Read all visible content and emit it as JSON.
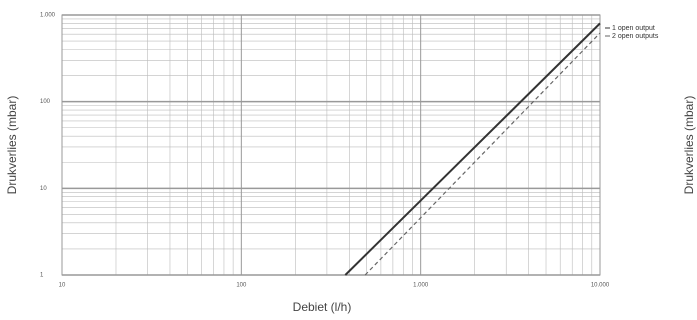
{
  "chart_data": {
    "type": "line",
    "x_label": "Debiet (l/h)",
    "y_label": "Drukverlies (mbar)",
    "log_x": true,
    "log_y": true,
    "grid": true,
    "xlim": [
      10,
      10000
    ],
    "ylim": [
      1,
      1000
    ],
    "xticks": [
      10,
      100,
      {
        "value": 1000,
        "label": "1.000"
      },
      {
        "value": 10000,
        "label": "10.000"
      }
    ],
    "yticks": [
      1,
      10,
      100,
      {
        "value": 1000,
        "label": "1.000"
      }
    ],
    "legend_position": "right",
    "series": [
      {
        "name": "1 open output",
        "color": "#333333",
        "dash": "solid",
        "x": [
          380,
          10000
        ],
        "values": [
          1,
          800
        ]
      },
      {
        "name": "2 open outputs",
        "color": "#666666",
        "dash": "dashed",
        "x": [
          490,
          10000
        ],
        "values": [
          1,
          620
        ]
      }
    ]
  },
  "cropped_label": "Drukverlies (mbar)"
}
